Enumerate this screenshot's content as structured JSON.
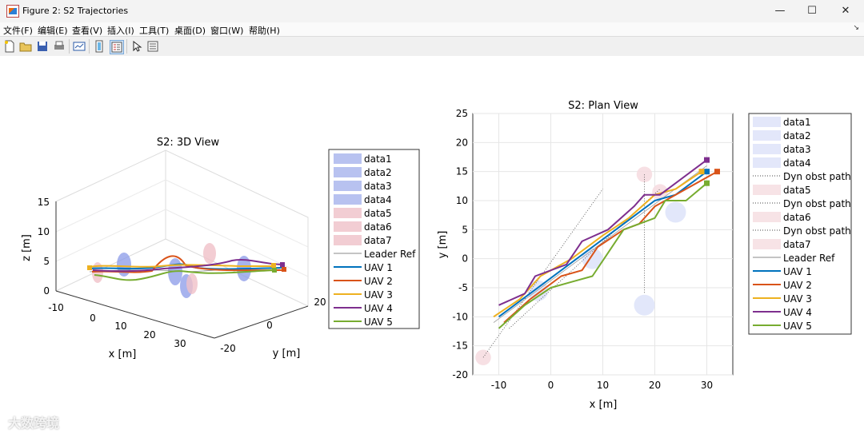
{
  "window": {
    "title": "Figure 2: S2 Trajectories",
    "minimize": "—",
    "maximize": "☐",
    "close": "✕"
  },
  "menu": [
    "文件(F)",
    "编辑(E)",
    "查看(V)",
    "插入(I)",
    "工具(T)",
    "桌面(D)",
    "窗口(W)",
    "帮助(H)"
  ],
  "menu_arrow": "↘",
  "toolbar": [
    "new-figure-icon",
    "open-icon",
    "save-icon",
    "print-icon",
    "link-plot-icon",
    "colorbar-icon",
    "legend-icon",
    "pointer-icon",
    "property-inspector-icon"
  ],
  "colors": {
    "uav1": "#0072BD",
    "uav2": "#D95319",
    "uav3": "#EDB120",
    "uav4": "#7E2F8E",
    "uav5": "#77AC30",
    "obs_blue": "#a8b6f0",
    "obs_red": "#f0c0c8"
  },
  "chart_data": [
    {
      "type": "line",
      "title": "S2: 3D View",
      "xlabel": "x [m]",
      "ylabel": "y [m]",
      "zlabel": "z [m]",
      "xticks": [
        "-10",
        "0",
        "10",
        "20",
        "30"
      ],
      "yticks": [
        "-20",
        "0",
        "20"
      ],
      "zticks": [
        "0",
        "5",
        "10",
        "15"
      ],
      "legend": [
        "data1",
        "data2",
        "data3",
        "data4",
        "data5",
        "data6",
        "data7",
        "Leader Ref",
        "UAV 1",
        "UAV 2",
        "UAV 3",
        "UAV 4",
        "UAV 5"
      ],
      "legend_location": "outside-right"
    },
    {
      "type": "line",
      "title": "S2: Plan View",
      "xlabel": "x [m]",
      "ylabel": "y [m]",
      "xlim": [
        -15,
        35
      ],
      "ylim": [
        -20,
        25
      ],
      "xticks": [
        -10,
        0,
        10,
        20,
        30
      ],
      "yticks": [
        -20,
        -15,
        -10,
        -5,
        0,
        5,
        10,
        15,
        20,
        25
      ],
      "grid": true,
      "legend": [
        "data1",
        "data2",
        "data3",
        "data4",
        "Dyn obst path",
        "data5",
        "Dyn obst path",
        "data6",
        "Dyn obst path",
        "data7",
        "Leader Ref",
        "UAV 1",
        "UAV 2",
        "UAV 3",
        "UAV 4",
        "UAV 5"
      ],
      "legend_location": "outside-right",
      "static_obstacles": [
        {
          "name": "data1",
          "x": -2.5,
          "y": -5.5,
          "r": 2
        },
        {
          "name": "data2",
          "x": 8,
          "y": 0,
          "r": 2
        },
        {
          "name": "data3",
          "x": 24,
          "y": 8,
          "r": 2
        },
        {
          "name": "data4",
          "x": 18,
          "y": -8,
          "r": 2
        }
      ],
      "dynamic_obstacles": [
        {
          "name": "data5",
          "x": -13,
          "y": -17,
          "r": 1.5,
          "path": [
            [
              -13,
              -17
            ],
            [
              10,
              12
            ]
          ]
        },
        {
          "name": "data6",
          "x": 18,
          "y": 14.5,
          "r": 1.5,
          "path": [
            [
              18,
              14.5
            ],
            [
              18,
              -6
            ]
          ]
        },
        {
          "name": "data7",
          "x": 21,
          "y": 11.5,
          "r": 1.5,
          "path": [
            [
              -8,
              -12
            ],
            [
              21,
              12
            ]
          ]
        }
      ],
      "leader_ref": [
        [
          -11,
          -11
        ],
        [
          30,
          16
        ]
      ],
      "series": [
        {
          "name": "UAV 1",
          "points": [
            [
              -10,
              -10
            ],
            [
              -4,
              -6
            ],
            [
              2,
              -2
            ],
            [
              8,
              2
            ],
            [
              14,
              6
            ],
            [
              20,
              10
            ],
            [
              24,
              11
            ],
            [
              30,
              15
            ]
          ]
        },
        {
          "name": "UAV 2",
          "points": [
            [
              -9,
              -11
            ],
            [
              -4,
              -7
            ],
            [
              2,
              -3
            ],
            [
              6,
              -2
            ],
            [
              9,
              2
            ],
            [
              14,
              5
            ],
            [
              17,
              6
            ],
            [
              20,
              9
            ],
            [
              24,
              11
            ],
            [
              32,
              15
            ]
          ]
        },
        {
          "name": "UAV 3",
          "points": [
            [
              -11,
              -10
            ],
            [
              -6,
              -7
            ],
            [
              -2,
              -3
            ],
            [
              4,
              0
            ],
            [
              10,
              4
            ],
            [
              15,
              7
            ],
            [
              20,
              11
            ],
            [
              24,
              12
            ],
            [
              29,
              15
            ]
          ]
        },
        {
          "name": "UAV 4",
          "points": [
            [
              -10,
              -8
            ],
            [
              -5,
              -6
            ],
            [
              -3,
              -3
            ],
            [
              3,
              -1
            ],
            [
              6,
              3
            ],
            [
              11,
              5
            ],
            [
              16,
              9
            ],
            [
              18,
              11
            ],
            [
              21,
              11
            ],
            [
              24,
              13
            ],
            [
              30,
              17
            ]
          ]
        },
        {
          "name": "UAV 5",
          "points": [
            [
              -10,
              -12
            ],
            [
              -5,
              -8
            ],
            [
              0,
              -5
            ],
            [
              4,
              -4
            ],
            [
              8,
              -3
            ],
            [
              11,
              1
            ],
            [
              14,
              5
            ],
            [
              20,
              7
            ],
            [
              22,
              10
            ],
            [
              26,
              10
            ],
            [
              30,
              13
            ]
          ]
        }
      ]
    }
  ],
  "watermark": "大数跨境"
}
